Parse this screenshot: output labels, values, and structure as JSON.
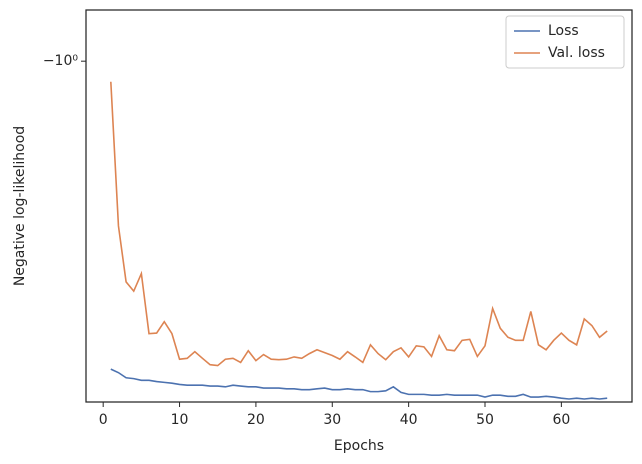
{
  "chart_data": {
    "type": "line",
    "x_label": "Epochs",
    "y_label": "Negative log-likelihood",
    "yscale": "symlog",
    "x": [
      1,
      2,
      3,
      4,
      5,
      6,
      7,
      8,
      9,
      10,
      11,
      12,
      13,
      14,
      15,
      16,
      17,
      18,
      19,
      20,
      21,
      22,
      23,
      24,
      25,
      26,
      27,
      28,
      29,
      30,
      31,
      32,
      33,
      34,
      35,
      36,
      37,
      38,
      39,
      40,
      41,
      42,
      43,
      44,
      45,
      46,
      47,
      48,
      49,
      50,
      51,
      52,
      53,
      54,
      55,
      56,
      57,
      58,
      59,
      60,
      61,
      62,
      63,
      64,
      65,
      66
    ],
    "series": [
      {
        "name": "Loss",
        "color": "#4c72b0",
        "values": [
          -4.59,
          -4.67,
          -4.79,
          -4.81,
          -4.85,
          -4.85,
          -4.88,
          -4.9,
          -4.92,
          -4.95,
          -4.97,
          -4.97,
          -4.97,
          -4.99,
          -4.99,
          -5.01,
          -4.97,
          -4.99,
          -5.01,
          -5.01,
          -5.04,
          -5.04,
          -5.04,
          -5.06,
          -5.06,
          -5.08,
          -5.08,
          -5.06,
          -5.04,
          -5.08,
          -5.08,
          -5.06,
          -5.08,
          -5.08,
          -5.13,
          -5.13,
          -5.11,
          -5.01,
          -5.15,
          -5.2,
          -5.2,
          -5.2,
          -5.22,
          -5.22,
          -5.2,
          -5.22,
          -5.22,
          -5.22,
          -5.22,
          -5.27,
          -5.22,
          -5.22,
          -5.25,
          -5.25,
          -5.2,
          -5.27,
          -5.27,
          -5.25,
          -5.27,
          -5.3,
          -5.32,
          -5.3,
          -5.32,
          -5.3,
          -5.32,
          -5.3
        ]
      },
      {
        "name": "Val. loss",
        "color": "#dd8452",
        "values": [
          -1.107,
          -2.26,
          -2.98,
          -3.12,
          -2.86,
          -3.85,
          -3.84,
          -3.63,
          -3.85,
          -4.37,
          -4.35,
          -4.21,
          -4.35,
          -4.49,
          -4.51,
          -4.37,
          -4.35,
          -4.44,
          -4.19,
          -4.4,
          -4.27,
          -4.37,
          -4.38,
          -4.37,
          -4.32,
          -4.35,
          -4.25,
          -4.17,
          -4.23,
          -4.29,
          -4.37,
          -4.21,
          -4.32,
          -4.44,
          -4.07,
          -4.25,
          -4.38,
          -4.21,
          -4.13,
          -4.32,
          -4.09,
          -4.11,
          -4.31,
          -3.89,
          -4.17,
          -4.19,
          -3.98,
          -3.96,
          -4.31,
          -4.09,
          -3.4,
          -3.75,
          -3.92,
          -3.98,
          -3.98,
          -3.45,
          -4.07,
          -4.17,
          -3.98,
          -3.84,
          -3.98,
          -4.07,
          -3.58,
          -3.7,
          -3.92,
          -3.8
        ]
      }
    ],
    "xlim": [
      -2.25,
      69.25
    ],
    "xticks": [
      0,
      10,
      20,
      30,
      40,
      50,
      60
    ],
    "ylim": [
      -0.89,
      -5.4
    ],
    "yticks": [
      {
        "value": -1,
        "label": "−10⁰"
      }
    ],
    "legend": "upper right",
    "grid": false
  }
}
